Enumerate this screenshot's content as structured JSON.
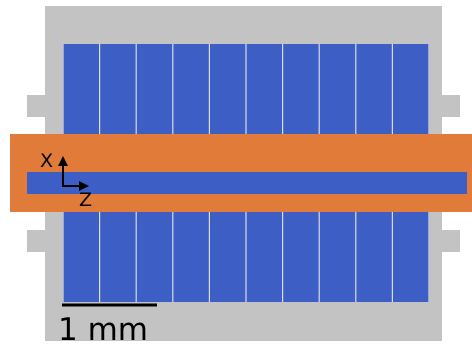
{
  "axes": {
    "x_label": "X",
    "z_label": "Z"
  },
  "scale_bar": {
    "label": "1 mm"
  },
  "colors": {
    "frame": "#c3c3c3",
    "electrode": "#3c5ec5",
    "electrode_gap": "#d8dcec",
    "waveguide_cladding": "#e07b3a",
    "waveguide_core": "#3c5ec5",
    "axis": "#000000"
  },
  "electrode_array": {
    "top_segments": 10,
    "bottom_segments": 10
  }
}
